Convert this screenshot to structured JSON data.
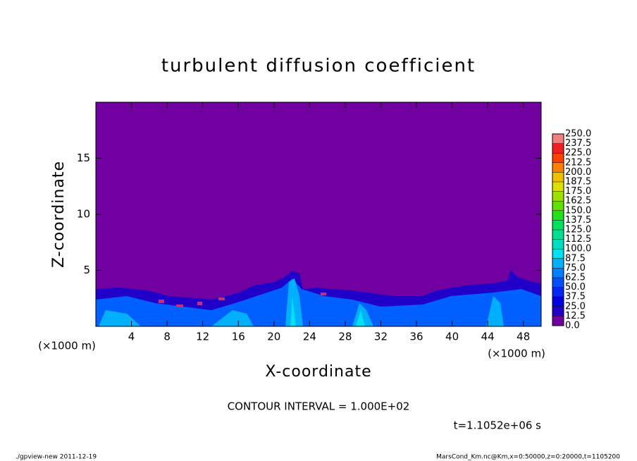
{
  "chart_data": {
    "type": "contour",
    "title": "turbulent diffusion coefficient",
    "x_label": "X-coordinate",
    "y_label": "Z-coordinate",
    "x_unit_label": "(×1000 m)",
    "y_unit_label": "(×1000 m)",
    "xlim": [
      0,
      50
    ],
    "xticks": [
      4,
      8,
      12,
      16,
      20,
      24,
      28,
      32,
      36,
      40,
      44,
      48
    ],
    "ylim": [
      0,
      20
    ],
    "yticks": [
      5,
      10,
      15
    ],
    "colorbar": {
      "levels": [
        {
          "value": 0,
          "label": "0.0"
        },
        12.5,
        {
          "value": 25,
          "label": "25.0"
        },
        37.5,
        {
          "value": 50,
          "label": "50.0"
        },
        62.5,
        {
          "value": 75,
          "label": "75.0"
        },
        87.5,
        {
          "value": 100,
          "label": "100.0"
        },
        112.5,
        {
          "value": 125,
          "label": "125.0"
        },
        137.5,
        {
          "value": 150,
          "label": "150.0"
        },
        162.5,
        {
          "value": 175,
          "label": "175.0"
        },
        187.5,
        {
          "value": 200,
          "label": "200.0"
        },
        212.5,
        {
          "value": 225,
          "label": "225.0"
        },
        237.5,
        {
          "value": 250,
          "label": "250.0"
        }
      ],
      "colors": [
        "#7000a0",
        "#2000c8",
        "#0000e0",
        "#0028f0",
        "#0050ff",
        "#0080ff",
        "#00b0ff",
        "#00e0f0",
        "#00e0c0",
        "#00e090",
        "#00e060",
        "#20e020",
        "#60e000",
        "#a0e000",
        "#e0e000",
        "#f0c000",
        "#ff8000",
        "#ff4000",
        "#f02020",
        "#f08080"
      ]
    },
    "contour_interval_label": "CONTOUR INTERVAL = 1.000E+02",
    "time_label": "t=1.1052e+06 s",
    "footer_left": "./gpview-new  2011-12-19",
    "footer_right": "MarsCond_Km.nc@Km,x=0:50000,z=0:20000,t=1105200"
  }
}
